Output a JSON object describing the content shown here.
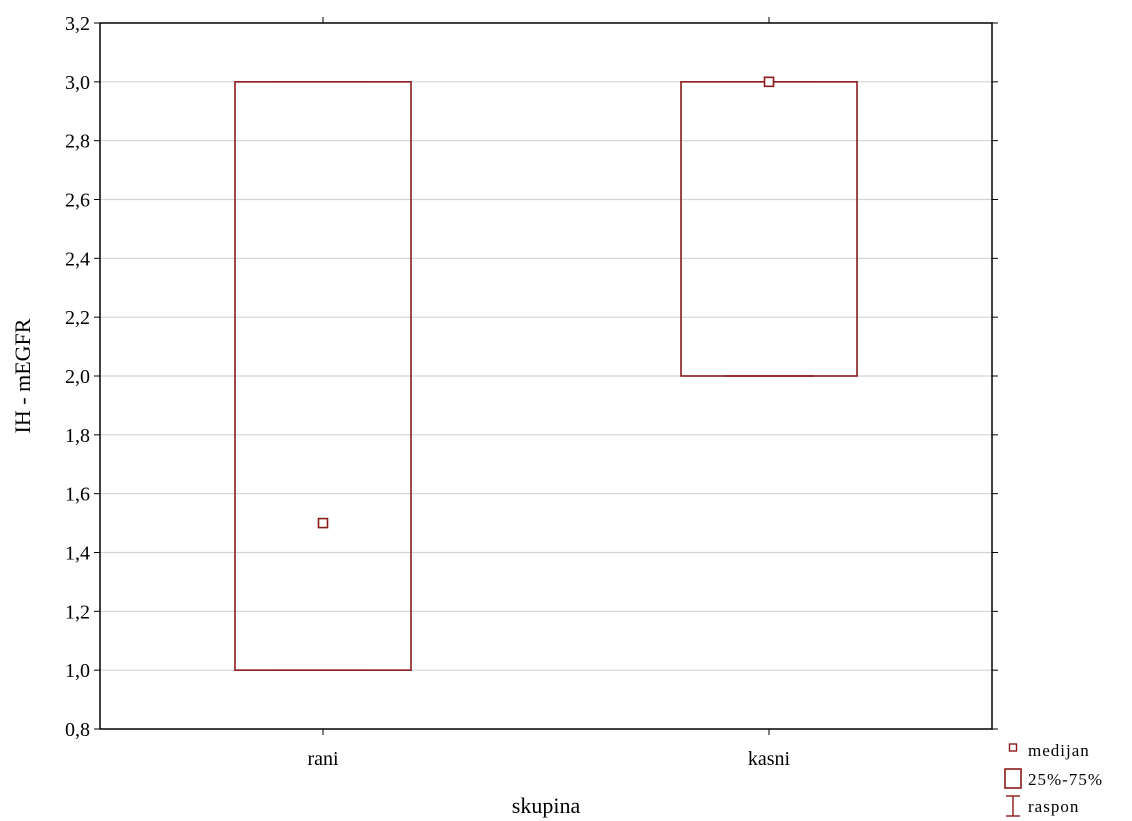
{
  "colors": {
    "box": "#8b1a1a",
    "grid": "#d3d3d3",
    "axis": "#000000",
    "background": "#ffffff"
  },
  "chart_data": {
    "type": "box",
    "xlabel": "skupina",
    "ylabel": "IH - mEGFR",
    "ylim": [
      0.8,
      3.2
    ],
    "y_ticks": [
      0.8,
      1.0,
      1.2,
      1.4,
      1.6,
      1.8,
      2.0,
      2.2,
      2.4,
      2.6,
      2.8,
      3.0,
      3.2
    ],
    "y_tick_labels": [
      "0,8",
      "1,0",
      "1,2",
      "1,4",
      "1,6",
      "1,8",
      "2,0",
      "2,2",
      "2,4",
      "2,6",
      "2,8",
      "3,0",
      "3,2"
    ],
    "grid": "horizontal",
    "legend_position": "bottom-right",
    "categories": [
      "rani",
      "kasni"
    ],
    "groups": [
      {
        "category": "rani",
        "median": 1.5,
        "q1": 1.0,
        "q3": 3.0,
        "min": 1.0,
        "max": 3.0
      },
      {
        "category": "kasni",
        "median": 3.0,
        "q1": 2.0,
        "q3": 3.0,
        "min": 2.0,
        "max": 3.0
      }
    ],
    "legend": [
      {
        "symbol": "median-marker",
        "label": "medijan"
      },
      {
        "symbol": "box",
        "label": "25%-75%"
      },
      {
        "symbol": "whisker",
        "label": "raspon"
      }
    ]
  }
}
